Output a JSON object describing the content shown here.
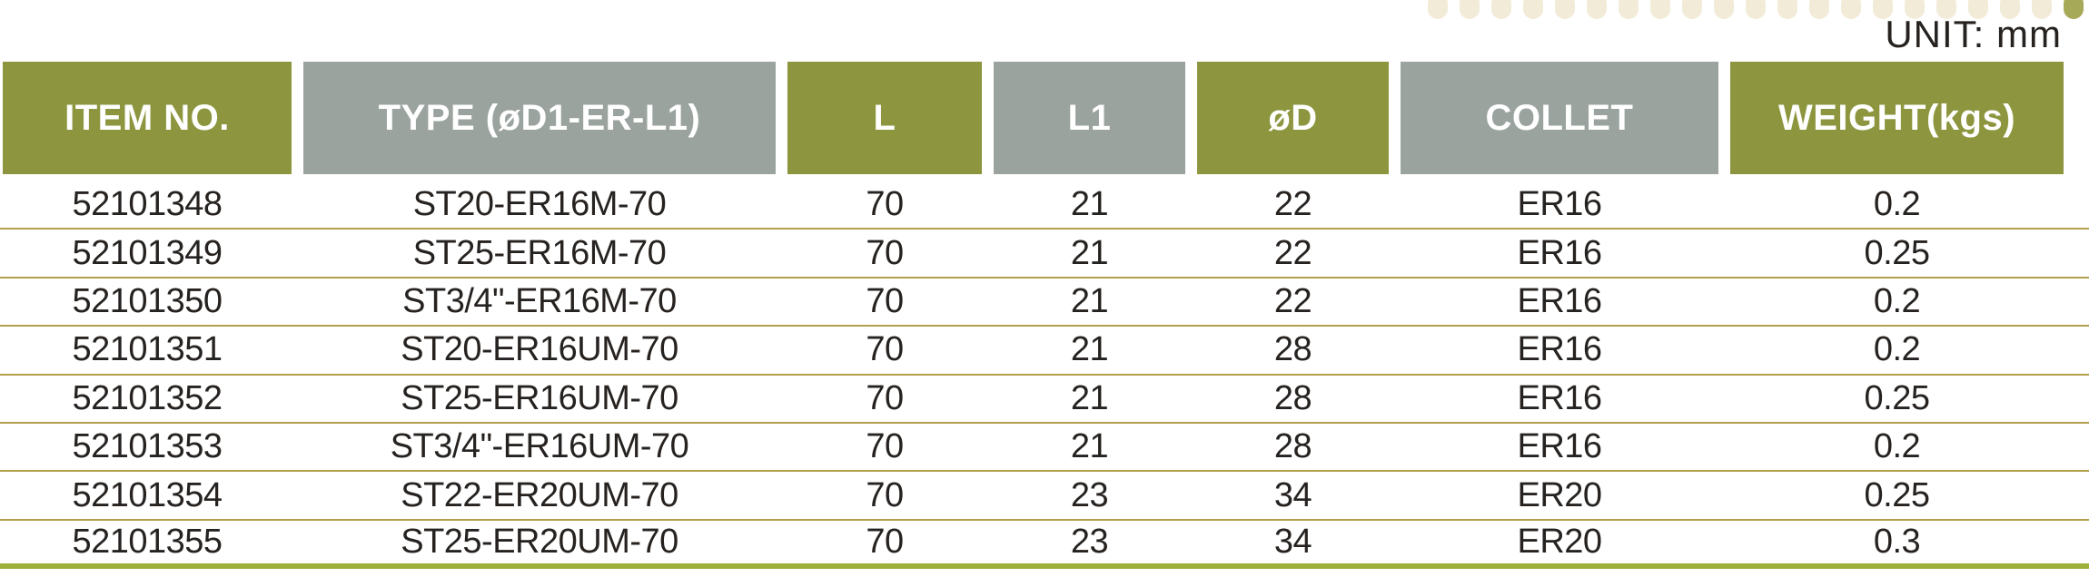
{
  "page": {
    "unit_label": "UNIT: mm"
  },
  "decor": {
    "dot_count": 21
  },
  "colors": {
    "olive": "#8d963f",
    "gray": "#9ba39f",
    "separator": "#b2a04a",
    "bottom": "#9cb03a",
    "ink": "#262220",
    "dot": "#f1ebd7",
    "dot-accent": "#a6a958",
    "paper": "#ffffff"
  },
  "table": {
    "columns": [
      {
        "label": "ITEM NO.",
        "variant": "olive"
      },
      {
        "label": "TYPE (øD1-ER-L1)",
        "variant": "gray"
      },
      {
        "label": "L",
        "variant": "olive"
      },
      {
        "label": "L1",
        "variant": "gray"
      },
      {
        "label": "øD",
        "variant": "olive"
      },
      {
        "label": "COLLET",
        "variant": "gray"
      },
      {
        "label": "WEIGHT(kgs)",
        "variant": "olive"
      }
    ],
    "rows": [
      [
        "52101348",
        "ST20-ER16M-70",
        "70",
        "21",
        "22",
        "ER16",
        "0.2"
      ],
      [
        "52101349",
        "ST25-ER16M-70",
        "70",
        "21",
        "22",
        "ER16",
        "0.25"
      ],
      [
        "52101350",
        "ST3/4\"-ER16M-70",
        "70",
        "21",
        "22",
        "ER16",
        "0.2"
      ],
      [
        "52101351",
        "ST20-ER16UM-70",
        "70",
        "21",
        "28",
        "ER16",
        "0.2"
      ],
      [
        "52101352",
        "ST25-ER16UM-70",
        "70",
        "21",
        "28",
        "ER16",
        "0.25"
      ],
      [
        "52101353",
        "ST3/4\"-ER16UM-70",
        "70",
        "21",
        "28",
        "ER16",
        "0.2"
      ],
      [
        "52101354",
        "ST22-ER20UM-70",
        "70",
        "23",
        "34",
        "ER20",
        "0.25"
      ],
      [
        "52101355",
        "ST25-ER20UM-70",
        "70",
        "23",
        "34",
        "ER20",
        "0.3"
      ]
    ]
  }
}
